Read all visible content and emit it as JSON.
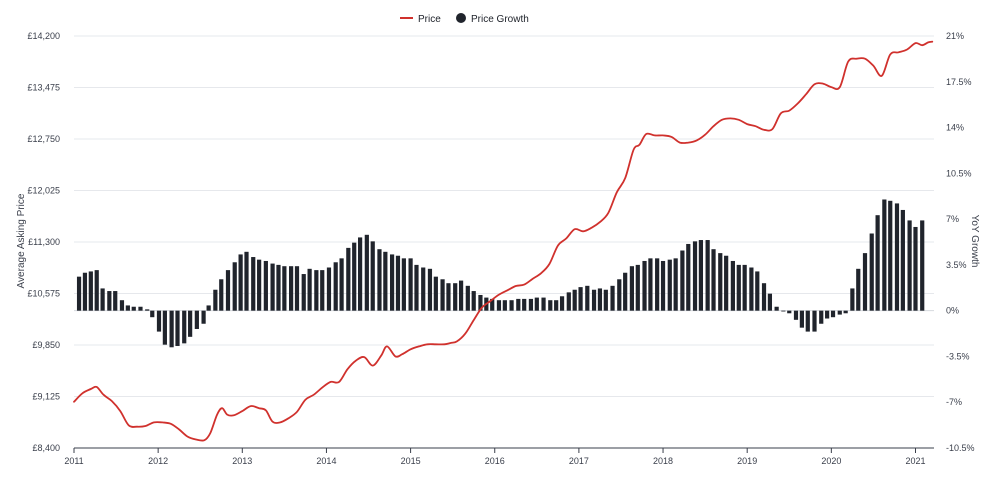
{
  "chart_data": {
    "type": "line",
    "legend": {
      "position": "top-center",
      "items": [
        {
          "label": "Price",
          "color": "#d0312d",
          "marker": "line"
        },
        {
          "label": "Price Growth",
          "color": "#20242c",
          "marker": "dot"
        }
      ]
    },
    "x_ticks": [
      "2011",
      "2012",
      "2013",
      "2014",
      "2015",
      "2016",
      "2017",
      "2018",
      "2019",
      "2020",
      "2021"
    ],
    "x_range": [
      2011.0,
      2021.22
    ],
    "y_left": {
      "label": "Average Asking Price",
      "range": [
        8400,
        14200
      ],
      "ticks": [
        "£8,400",
        "£9,125",
        "£9,850",
        "£10,575",
        "£11,300",
        "£12,025",
        "£12,750",
        "£13,475",
        "£14,200"
      ],
      "tick_values": [
        8400,
        9125,
        9850,
        10575,
        11300,
        12025,
        12750,
        13475,
        14200
      ]
    },
    "y_right": {
      "label": "YoY Growth",
      "range": [
        -10.5,
        21
      ],
      "ticks": [
        "-10.5%",
        "-7%",
        "-3.5%",
        "0%",
        "3.5%",
        "7%",
        "10.5%",
        "14%",
        "17.5%",
        "21%"
      ],
      "tick_values": [
        -10.5,
        -7,
        -3.5,
        0,
        3.5,
        7,
        10.5,
        14,
        17.5,
        21
      ]
    },
    "grid": {
      "horizontal": true,
      "vertical": false
    },
    "series": [
      {
        "name": "Price",
        "type": "line",
        "color": "#d0312d",
        "axis": "left",
        "points": [
          [
            2011.0,
            9050
          ],
          [
            2011.1,
            9170
          ],
          [
            2011.2,
            9230
          ],
          [
            2011.27,
            9260
          ],
          [
            2011.35,
            9150
          ],
          [
            2011.45,
            9060
          ],
          [
            2011.55,
            8920
          ],
          [
            2011.65,
            8720
          ],
          [
            2011.75,
            8700
          ],
          [
            2011.85,
            8710
          ],
          [
            2011.95,
            8760
          ],
          [
            2012.05,
            8760
          ],
          [
            2012.15,
            8740
          ],
          [
            2012.25,
            8660
          ],
          [
            2012.35,
            8560
          ],
          [
            2012.45,
            8520
          ],
          [
            2012.55,
            8510
          ],
          [
            2012.62,
            8610
          ],
          [
            2012.7,
            8870
          ],
          [
            2012.76,
            8960
          ],
          [
            2012.82,
            8870
          ],
          [
            2012.9,
            8860
          ],
          [
            2013.0,
            8920
          ],
          [
            2013.1,
            8990
          ],
          [
            2013.2,
            8960
          ],
          [
            2013.28,
            8930
          ],
          [
            2013.36,
            8770
          ],
          [
            2013.45,
            8760
          ],
          [
            2013.55,
            8820
          ],
          [
            2013.65,
            8910
          ],
          [
            2013.75,
            9080
          ],
          [
            2013.85,
            9150
          ],
          [
            2013.95,
            9250
          ],
          [
            2014.05,
            9330
          ],
          [
            2014.15,
            9330
          ],
          [
            2014.25,
            9510
          ],
          [
            2014.35,
            9630
          ],
          [
            2014.45,
            9680
          ],
          [
            2014.55,
            9560
          ],
          [
            2014.65,
            9700
          ],
          [
            2014.72,
            9830
          ],
          [
            2014.82,
            9690
          ],
          [
            2014.9,
            9720
          ],
          [
            2015.0,
            9790
          ],
          [
            2015.1,
            9830
          ],
          [
            2015.2,
            9860
          ],
          [
            2015.3,
            9860
          ],
          [
            2015.4,
            9860
          ],
          [
            2015.48,
            9880
          ],
          [
            2015.55,
            9900
          ],
          [
            2015.65,
            10010
          ],
          [
            2015.75,
            10200
          ],
          [
            2015.85,
            10380
          ],
          [
            2015.95,
            10470
          ],
          [
            2016.05,
            10560
          ],
          [
            2016.15,
            10620
          ],
          [
            2016.25,
            10680
          ],
          [
            2016.35,
            10700
          ],
          [
            2016.45,
            10780
          ],
          [
            2016.55,
            10860
          ],
          [
            2016.65,
            10990
          ],
          [
            2016.75,
            11250
          ],
          [
            2016.85,
            11350
          ],
          [
            2016.95,
            11480
          ],
          [
            2017.05,
            11450
          ],
          [
            2017.15,
            11500
          ],
          [
            2017.25,
            11580
          ],
          [
            2017.35,
            11710
          ],
          [
            2017.45,
            12000
          ],
          [
            2017.55,
            12200
          ],
          [
            2017.65,
            12600
          ],
          [
            2017.72,
            12670
          ],
          [
            2017.8,
            12820
          ],
          [
            2017.9,
            12800
          ],
          [
            2018.0,
            12800
          ],
          [
            2018.1,
            12780
          ],
          [
            2018.2,
            12700
          ],
          [
            2018.3,
            12700
          ],
          [
            2018.4,
            12730
          ],
          [
            2018.5,
            12810
          ],
          [
            2018.6,
            12930
          ],
          [
            2018.7,
            13020
          ],
          [
            2018.8,
            13040
          ],
          [
            2018.9,
            13020
          ],
          [
            2019.0,
            12960
          ],
          [
            2019.1,
            12930
          ],
          [
            2019.2,
            12880
          ],
          [
            2019.3,
            12890
          ],
          [
            2019.4,
            13110
          ],
          [
            2019.5,
            13150
          ],
          [
            2019.6,
            13250
          ],
          [
            2019.7,
            13380
          ],
          [
            2019.8,
            13520
          ],
          [
            2019.9,
            13530
          ],
          [
            2020.0,
            13480
          ],
          [
            2020.1,
            13480
          ],
          [
            2020.2,
            13840
          ],
          [
            2020.3,
            13880
          ],
          [
            2020.4,
            13880
          ],
          [
            2020.5,
            13780
          ],
          [
            2020.6,
            13640
          ],
          [
            2020.7,
            13940
          ],
          [
            2020.8,
            13970
          ],
          [
            2020.9,
            14010
          ],
          [
            2021.0,
            14100
          ],
          [
            2021.08,
            14070
          ],
          [
            2021.15,
            14110
          ],
          [
            2021.2,
            14120
          ]
        ]
      },
      {
        "name": "Price Growth",
        "type": "bar",
        "color": "#20242c",
        "axis": "right",
        "points": [
          [
            2011.06,
            2.6
          ],
          [
            2011.13,
            2.9
          ],
          [
            2011.2,
            3.0
          ],
          [
            2011.27,
            3.1
          ],
          [
            2011.34,
            1.7
          ],
          [
            2011.42,
            1.5
          ],
          [
            2011.49,
            1.5
          ],
          [
            2011.57,
            0.8
          ],
          [
            2011.64,
            0.4
          ],
          [
            2011.71,
            0.3
          ],
          [
            2011.79,
            0.3
          ],
          [
            2011.87,
            0.1
          ],
          [
            2011.93,
            -0.5
          ],
          [
            2012.01,
            -1.6
          ],
          [
            2012.08,
            -2.6
          ],
          [
            2012.16,
            -2.8
          ],
          [
            2012.23,
            -2.7
          ],
          [
            2012.31,
            -2.5
          ],
          [
            2012.38,
            -2.0
          ],
          [
            2012.46,
            -1.4
          ],
          [
            2012.54,
            -1.0
          ],
          [
            2012.6,
            0.4
          ],
          [
            2012.68,
            1.6
          ],
          [
            2012.75,
            2.4
          ],
          [
            2012.83,
            3.1
          ],
          [
            2012.91,
            3.7
          ],
          [
            2012.98,
            4.3
          ],
          [
            2013.05,
            4.5
          ],
          [
            2013.13,
            4.1
          ],
          [
            2013.2,
            3.9
          ],
          [
            2013.28,
            3.8
          ],
          [
            2013.36,
            3.6
          ],
          [
            2013.43,
            3.5
          ],
          [
            2013.5,
            3.4
          ],
          [
            2013.58,
            3.4
          ],
          [
            2013.65,
            3.4
          ],
          [
            2013.73,
            2.8
          ],
          [
            2013.8,
            3.2
          ],
          [
            2013.88,
            3.1
          ],
          [
            2013.95,
            3.1
          ],
          [
            2014.03,
            3.3
          ],
          [
            2014.11,
            3.7
          ],
          [
            2014.18,
            4.0
          ],
          [
            2014.26,
            4.8
          ],
          [
            2014.33,
            5.2
          ],
          [
            2014.4,
            5.6
          ],
          [
            2014.48,
            5.8
          ],
          [
            2014.55,
            5.3
          ],
          [
            2014.63,
            4.7
          ],
          [
            2014.7,
            4.5
          ],
          [
            2014.78,
            4.3
          ],
          [
            2014.85,
            4.2
          ],
          [
            2014.92,
            4.0
          ],
          [
            2015.0,
            4.0
          ],
          [
            2015.07,
            3.5
          ],
          [
            2015.15,
            3.3
          ],
          [
            2015.23,
            3.2
          ],
          [
            2015.3,
            2.6
          ],
          [
            2015.38,
            2.4
          ],
          [
            2015.45,
            2.1
          ],
          [
            2015.53,
            2.1
          ],
          [
            2015.6,
            2.3
          ],
          [
            2015.68,
            1.9
          ],
          [
            2015.75,
            1.5
          ],
          [
            2015.83,
            1.2
          ],
          [
            2015.9,
            1.0
          ],
          [
            2015.97,
            0.9
          ],
          [
            2016.05,
            0.8
          ],
          [
            2016.12,
            0.8
          ],
          [
            2016.2,
            0.8
          ],
          [
            2016.28,
            0.9
          ],
          [
            2016.35,
            0.9
          ],
          [
            2016.43,
            0.9
          ],
          [
            2016.5,
            1.0
          ],
          [
            2016.58,
            1.0
          ],
          [
            2016.66,
            0.8
          ],
          [
            2016.73,
            0.8
          ],
          [
            2016.8,
            1.1
          ],
          [
            2016.88,
            1.4
          ],
          [
            2016.95,
            1.6
          ],
          [
            2017.02,
            1.8
          ],
          [
            2017.1,
            1.9
          ],
          [
            2017.18,
            1.6
          ],
          [
            2017.25,
            1.7
          ],
          [
            2017.32,
            1.6
          ],
          [
            2017.4,
            1.9
          ],
          [
            2017.48,
            2.4
          ],
          [
            2017.55,
            2.9
          ],
          [
            2017.63,
            3.4
          ],
          [
            2017.7,
            3.5
          ],
          [
            2017.78,
            3.8
          ],
          [
            2017.85,
            4.0
          ],
          [
            2017.93,
            4.0
          ],
          [
            2018.0,
            3.8
          ],
          [
            2018.08,
            3.9
          ],
          [
            2018.15,
            4.0
          ],
          [
            2018.23,
            4.6
          ],
          [
            2018.3,
            5.1
          ],
          [
            2018.38,
            5.3
          ],
          [
            2018.45,
            5.4
          ],
          [
            2018.53,
            5.4
          ],
          [
            2018.6,
            4.7
          ],
          [
            2018.68,
            4.4
          ],
          [
            2018.75,
            4.2
          ],
          [
            2018.83,
            3.8
          ],
          [
            2018.9,
            3.5
          ],
          [
            2018.97,
            3.5
          ],
          [
            2019.05,
            3.3
          ],
          [
            2019.12,
            3.0
          ],
          [
            2019.2,
            2.1
          ],
          [
            2019.27,
            1.3
          ],
          [
            2019.35,
            0.3
          ],
          [
            2019.43,
            0.0
          ],
          [
            2019.5,
            -0.2
          ],
          [
            2019.58,
            -0.7
          ],
          [
            2019.65,
            -1.3
          ],
          [
            2019.72,
            -1.6
          ],
          [
            2019.8,
            -1.6
          ],
          [
            2019.88,
            -1.0
          ],
          [
            2019.95,
            -0.6
          ],
          [
            2020.02,
            -0.5
          ],
          [
            2020.1,
            -0.3
          ],
          [
            2020.17,
            -0.2
          ],
          [
            2020.25,
            1.7
          ],
          [
            2020.32,
            3.2
          ],
          [
            2020.4,
            4.4
          ],
          [
            2020.48,
            5.9
          ],
          [
            2020.55,
            7.3
          ],
          [
            2020.63,
            8.5
          ],
          [
            2020.7,
            8.4
          ],
          [
            2020.78,
            8.2
          ],
          [
            2020.85,
            7.7
          ],
          [
            2020.93,
            6.9
          ],
          [
            2021.0,
            6.4
          ],
          [
            2021.08,
            6.9
          ]
        ]
      }
    ]
  }
}
